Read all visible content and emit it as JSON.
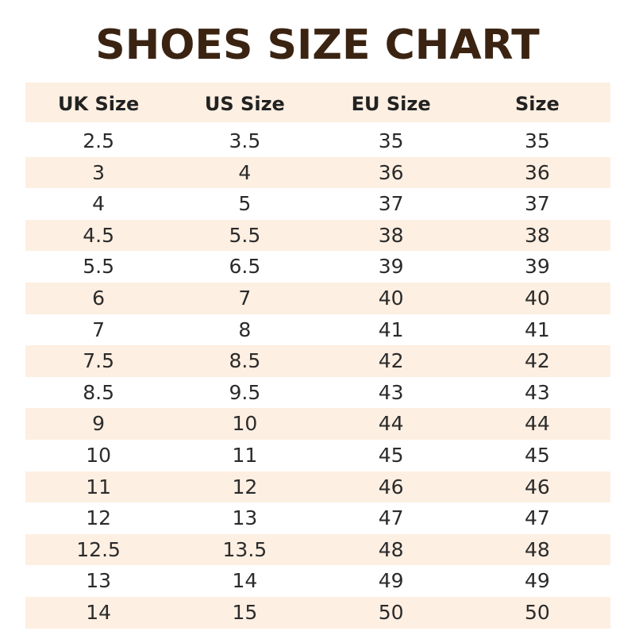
{
  "title": "SHOES SIZE CHART",
  "table": {
    "header": [
      "UK Size",
      "US Size",
      "EU Size",
      "Size"
    ],
    "rows": [
      [
        "2.5",
        "3.5",
        "35",
        "35"
      ],
      [
        "3",
        "4",
        "36",
        "36"
      ],
      [
        "4",
        "5",
        "37",
        "37"
      ],
      [
        "4.5",
        "5.5",
        "38",
        "38"
      ],
      [
        "5.5",
        "6.5",
        "39",
        "39"
      ],
      [
        "6",
        "7",
        "40",
        "40"
      ],
      [
        "7",
        "8",
        "41",
        "41"
      ],
      [
        "7.5",
        "8.5",
        "42",
        "42"
      ],
      [
        "8.5",
        "9.5",
        "43",
        "43"
      ],
      [
        "9",
        "10",
        "44",
        "44"
      ],
      [
        "10",
        "11",
        "45",
        "45"
      ],
      [
        "11",
        "12",
        "46",
        "46"
      ],
      [
        "12",
        "13",
        "47",
        "47"
      ],
      [
        "12.5",
        "13.5",
        "48",
        "48"
      ],
      [
        "13",
        "14",
        "49",
        "49"
      ],
      [
        "14",
        "15",
        "50",
        "50"
      ]
    ]
  }
}
